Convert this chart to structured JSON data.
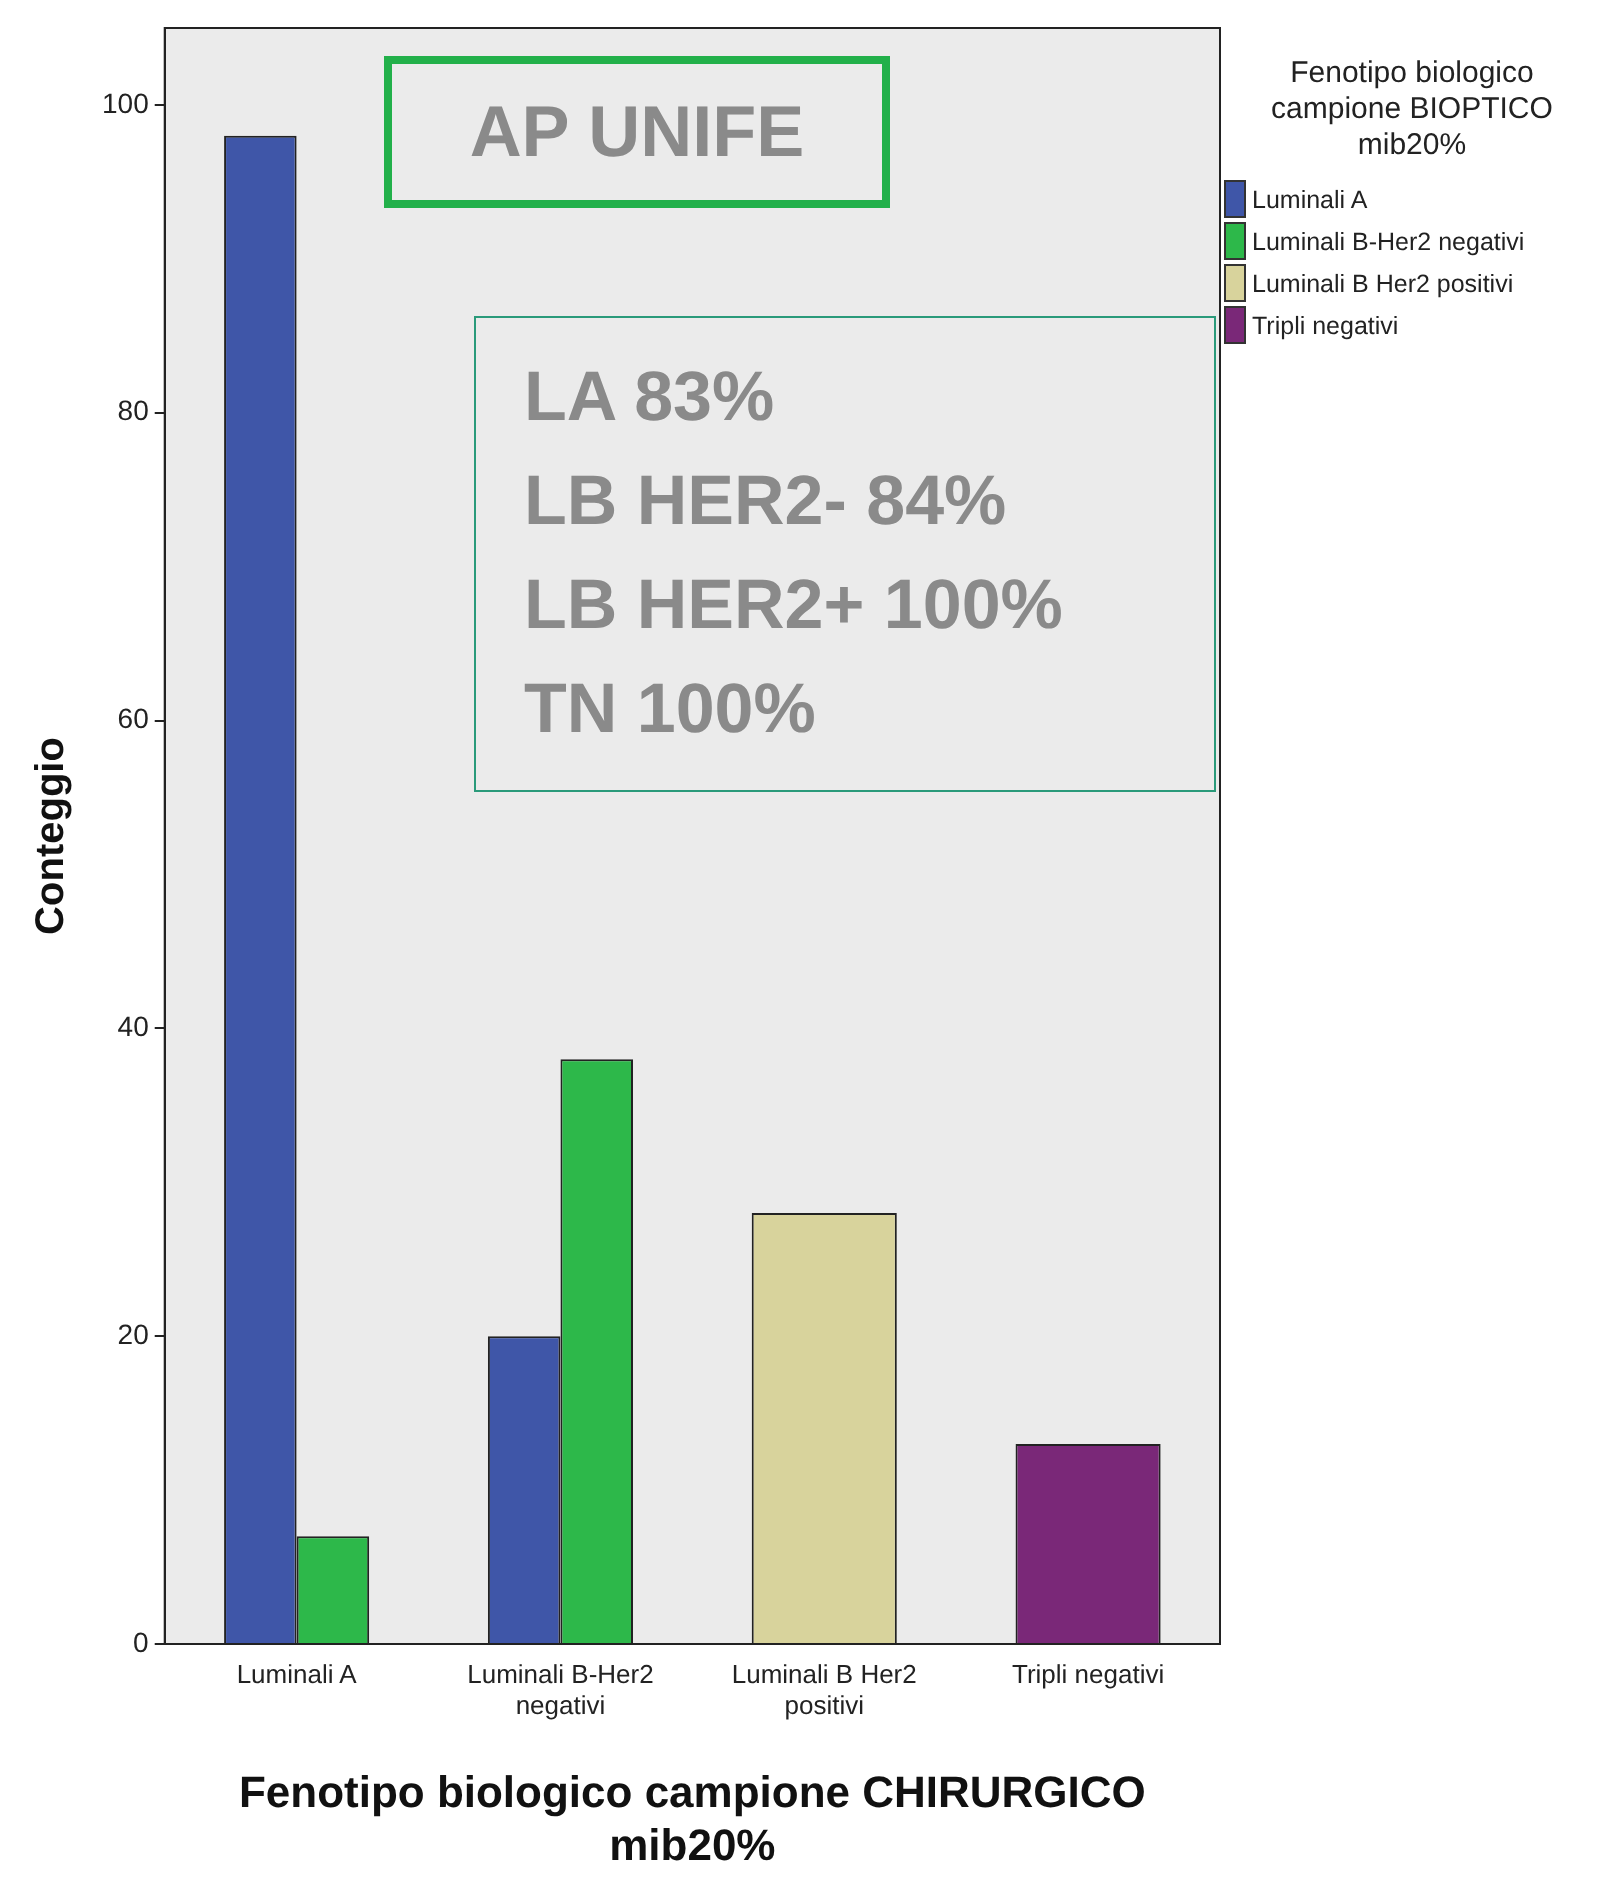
{
  "chart_data": {
    "type": "bar",
    "xlabel": "Fenotipo biologico campione CHIRURGICO mib20%",
    "ylabel": "Conteggio",
    "legend_title": "Fenotipo biologico campione BIOPTICO mib20%",
    "categories": [
      "Luminali A",
      "Luminali B-Her2 negativi",
      "Luminali B Her2 positivi",
      "Tripli negativi"
    ],
    "series": [
      {
        "name": "Luminali A",
        "color": "#3f56a8",
        "values": [
          98,
          20,
          null,
          null
        ]
      },
      {
        "name": "Luminali B-Her2 negativi",
        "color": "#2db84a",
        "values": [
          7,
          38,
          null,
          null
        ]
      },
      {
        "name": "Luminali B Her2 positivi",
        "color": "#d8d39c",
        "values": [
          null,
          null,
          28,
          null
        ]
      },
      {
        "name": "Tripli negativi",
        "color": "#7a2878",
        "values": [
          null,
          null,
          null,
          13
        ]
      }
    ],
    "ylim": [
      0,
      105
    ],
    "yticks": [
      0,
      20,
      40,
      60,
      80,
      100
    ],
    "grid": false,
    "legend": "top right",
    "annotations": [
      "AP  UNIFE",
      "LA 83%",
      "LB HER2- 84%",
      "LB HER2+ 100%",
      "TN 100%"
    ]
  }
}
